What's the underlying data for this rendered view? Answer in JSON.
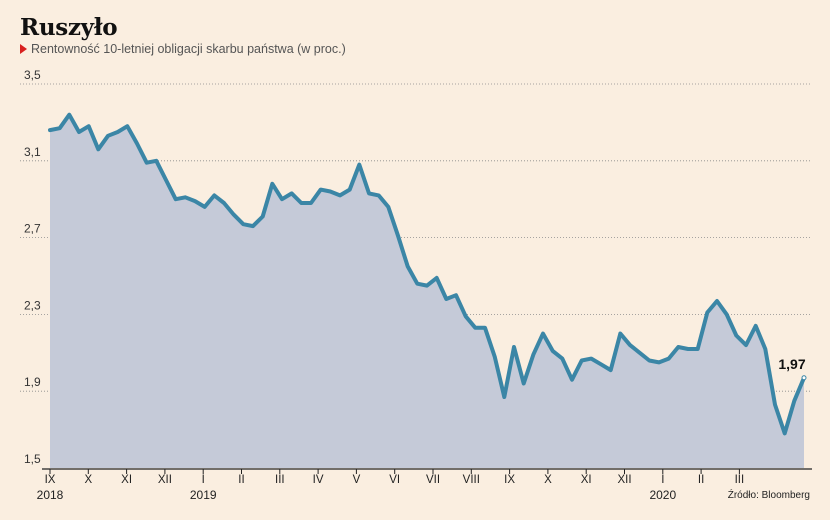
{
  "title": "Ruszyło",
  "subtitle": "Rentowność 10-letniej obligacji skarbu państwa (w proc.)",
  "source": "Źródło: Bloomberg",
  "colors": {
    "background": "#faeee0",
    "line": "#3b86a6",
    "area": "#c5cad8",
    "marker": "#d8201f"
  },
  "chart_data": {
    "type": "area",
    "ylim": [
      1.5,
      3.5
    ],
    "yticks": [
      "3,5",
      "3,1",
      "2,7",
      "2,3",
      "1,9",
      "1,5"
    ],
    "ytick_values": [
      3.5,
      3.1,
      2.7,
      2.3,
      1.9,
      1.5
    ],
    "grid": true,
    "months": [
      "IX",
      "X",
      "XI",
      "XII",
      "I",
      "II",
      "III",
      "IV",
      "V",
      "VI",
      "VII",
      "VIII",
      "IX",
      "X",
      "XI",
      "XII",
      "I",
      "II",
      "III"
    ],
    "years": [
      {
        "label": "2018",
        "month_index": 0
      },
      {
        "label": "2019",
        "month_index": 4
      },
      {
        "label": "2020",
        "month_index": 16
      }
    ],
    "end_label": "1,97",
    "series": [
      {
        "values": [
          3.26,
          3.27,
          3.34,
          3.25,
          3.28,
          3.16,
          3.23,
          3.25,
          3.28,
          3.19,
          3.09,
          3.1,
          3.0,
          2.9,
          2.91,
          2.89,
          2.86,
          2.92,
          2.88,
          2.82,
          2.77,
          2.76,
          2.81,
          2.98,
          2.9,
          2.93,
          2.88,
          2.88,
          2.95,
          2.94,
          2.92,
          2.95,
          3.08,
          2.93,
          2.92,
          2.86,
          2.71,
          2.55,
          2.46,
          2.45,
          2.49,
          2.38,
          2.4,
          2.29,
          2.23,
          2.23,
          2.08,
          1.87,
          2.13,
          1.94,
          2.09,
          2.2,
          2.11,
          2.07,
          1.96,
          2.06,
          2.07,
          2.04,
          2.01,
          2.2,
          2.14,
          2.1,
          2.06,
          2.05,
          2.07,
          2.13,
          2.12,
          2.12,
          2.31,
          2.37,
          2.3,
          2.19,
          2.14,
          2.24,
          2.12,
          1.83,
          1.68,
          1.85,
          1.97
        ]
      }
    ]
  }
}
